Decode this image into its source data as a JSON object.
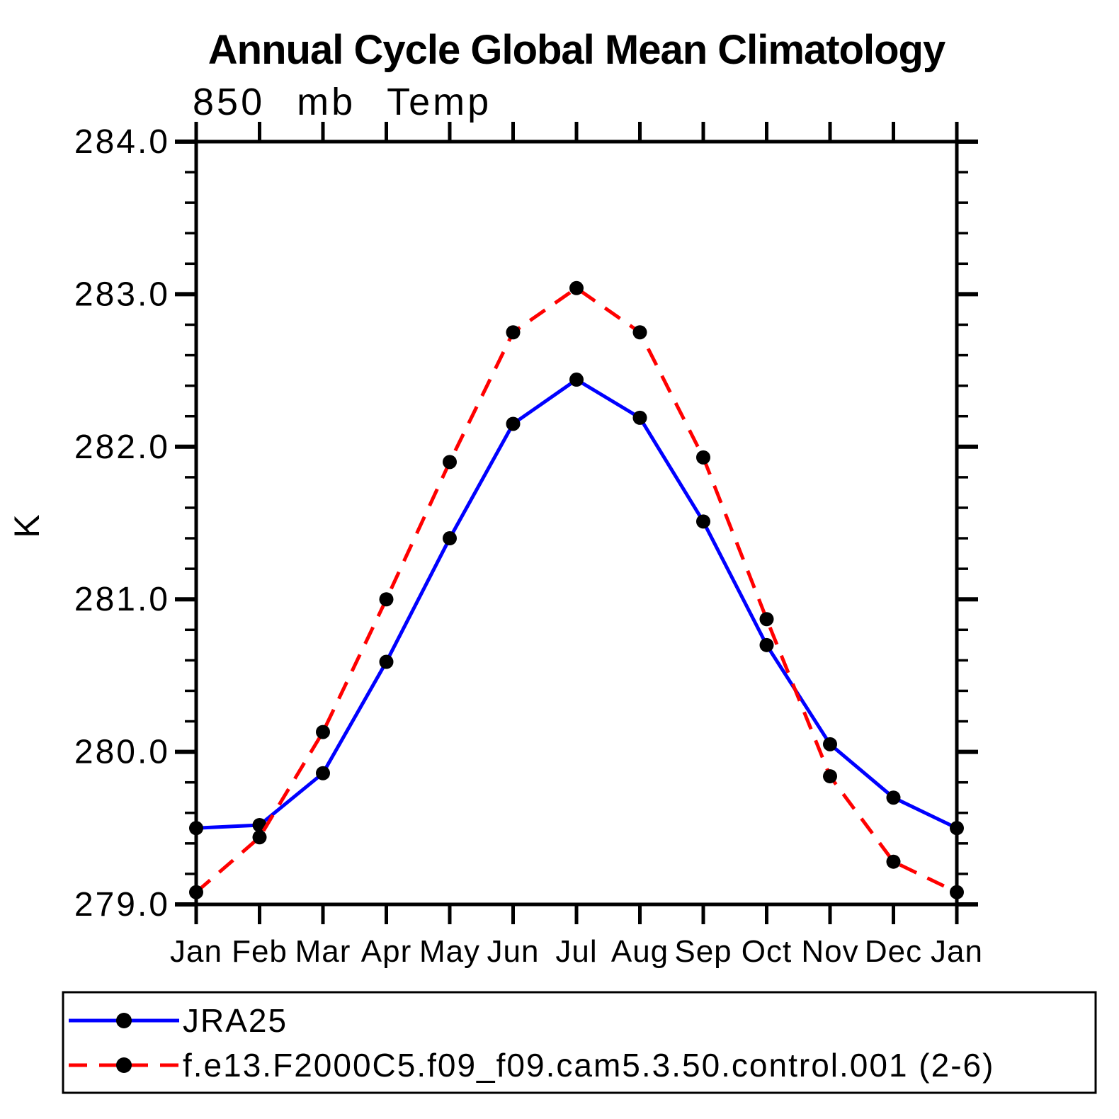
{
  "chart_data": {
    "type": "line",
    "title": "Annual Cycle Global Mean Climatology",
    "subtitle": "850 mb Temp",
    "ylabel": "K",
    "categories": [
      "Jan",
      "Feb",
      "Mar",
      "Apr",
      "May",
      "Jun",
      "Jul",
      "Aug",
      "Sep",
      "Oct",
      "Nov",
      "Dec",
      "Jan"
    ],
    "ylim": [
      279.0,
      284.0
    ],
    "yticks": [
      279.0,
      280.0,
      281.0,
      282.0,
      283.0,
      284.0
    ],
    "ytick_labels": [
      "279.0",
      "280.0",
      "281.0",
      "282.0",
      "283.0",
      "284.0"
    ],
    "ytick_minor_step": 0.2,
    "grid": false,
    "legend_position": "bottom",
    "frame_color": "#000000",
    "series": [
      {
        "name": "JRA25",
        "color": "#0000ff",
        "line_style": "solid",
        "marker": "circle",
        "marker_color": "#000000",
        "values": [
          279.5,
          279.52,
          279.86,
          280.59,
          281.4,
          282.15,
          282.44,
          282.19,
          281.51,
          280.7,
          280.05,
          279.7,
          279.5
        ]
      },
      {
        "name": "f.e13.F2000C5.f09_f09.cam5.3.50.control.001 (2-6)",
        "color": "#ff0000",
        "line_style": "dashed",
        "marker": "circle",
        "marker_color": "#000000",
        "values": [
          279.08,
          279.44,
          280.13,
          281.0,
          281.9,
          282.75,
          283.04,
          282.75,
          281.93,
          280.87,
          279.84,
          279.28,
          279.08
        ]
      }
    ]
  }
}
